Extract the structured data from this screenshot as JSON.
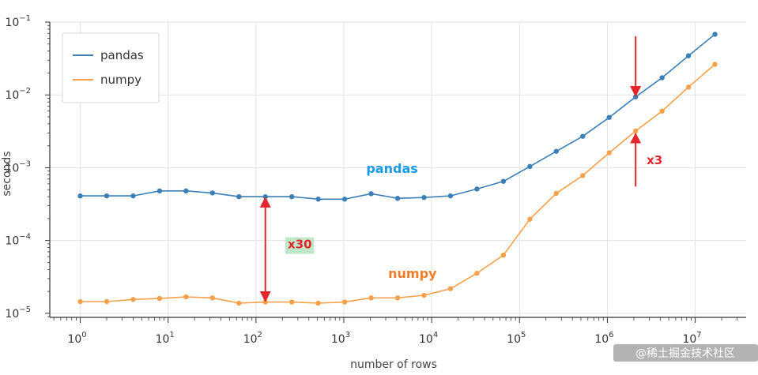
{
  "chart_data": {
    "type": "line",
    "xlabel": "number of rows",
    "ylabel": "seconds",
    "xscale": "log",
    "yscale": "log",
    "xlim": [
      0.45,
      38000000
    ],
    "ylim": [
      8.8e-06,
      0.1
    ],
    "grid": true,
    "legend_position": "top-left",
    "x_ticks": [
      {
        "value": 1,
        "label": "10",
        "exp": "0"
      },
      {
        "value": 10,
        "label": "10",
        "exp": "1"
      },
      {
        "value": 100,
        "label": "10",
        "exp": "2"
      },
      {
        "value": 1000,
        "label": "10",
        "exp": "3"
      },
      {
        "value": 10000,
        "label": "10",
        "exp": "4"
      },
      {
        "value": 100000,
        "label": "10",
        "exp": "5"
      },
      {
        "value": 1000000,
        "label": "10",
        "exp": "6"
      },
      {
        "value": 10000000,
        "label": "10",
        "exp": "7"
      }
    ],
    "y_ticks": [
      {
        "value": 1e-05,
        "label": "10",
        "exp": "−5"
      },
      {
        "value": 0.0001,
        "label": "10",
        "exp": "−4"
      },
      {
        "value": 0.001,
        "label": "10",
        "exp": "−3"
      },
      {
        "value": 0.01,
        "label": "10",
        "exp": "−2"
      },
      {
        "value": 0.1,
        "label": "10",
        "exp": "−1"
      }
    ],
    "x": [
      1,
      2,
      4,
      8,
      16,
      32,
      64,
      128,
      256,
      512,
      1024,
      2048,
      4096,
      8192,
      16384,
      32768,
      65536,
      131072,
      262144,
      524288,
      1048576,
      2097152,
      4194304,
      8388608,
      16777216
    ],
    "series": [
      {
        "name": "pandas",
        "color": "#3b7fb6",
        "values": [
          0.00041,
          0.00041,
          0.00041,
          0.00048,
          0.00048,
          0.00045,
          0.0004,
          0.0004,
          0.0004,
          0.00037,
          0.00037,
          0.00044,
          0.00038,
          0.00039,
          0.00041,
          0.00051,
          0.00065,
          0.00104,
          0.00168,
          0.0027,
          0.0049,
          0.0094,
          0.0172,
          0.0345,
          0.068
        ]
      },
      {
        "name": "numpy",
        "color": "#f7a04a",
        "values": [
          1.45e-05,
          1.45e-05,
          1.55e-05,
          1.6e-05,
          1.68e-05,
          1.63e-05,
          1.38e-05,
          1.43e-05,
          1.43e-05,
          1.38e-05,
          1.43e-05,
          1.63e-05,
          1.63e-05,
          1.77e-05,
          2.18e-05,
          3.55e-05,
          6.3e-05,
          0.000196,
          0.000445,
          0.00078,
          0.0016,
          0.0032,
          0.006,
          0.0128,
          0.0263
        ]
      }
    ],
    "annotations": [
      {
        "text": "pandas",
        "x": 1800,
        "y": 0.00085,
        "color": "#1a9be6",
        "size": 16
      },
      {
        "text": "numpy",
        "x": 3200,
        "y": 3.05e-05,
        "color": "#f07d2a",
        "size": 16
      },
      {
        "text": "x30",
        "x": 230,
        "y": 7.8e-05,
        "color": "#e3262b",
        "size": 15,
        "highlight": "#bfe8c9"
      },
      {
        "text": "x3",
        "x": 2800000,
        "y": 0.00112,
        "color": "#e3262b",
        "size": 15
      }
    ],
    "arrows": [
      {
        "x": 128,
        "y1": 0.000375,
        "y2": 1.52e-05,
        "style": "double",
        "color": "#e3262b"
      },
      {
        "x": 2097152,
        "y1": 0.064,
        "y2": 0.01,
        "style": "down",
        "color": "#e3262b"
      },
      {
        "x": 2097152,
        "y1": 0.00055,
        "y2": 0.00285,
        "style": "up",
        "color": "#e3262b"
      }
    ]
  },
  "watermark": "@稀土掘金技术社区"
}
